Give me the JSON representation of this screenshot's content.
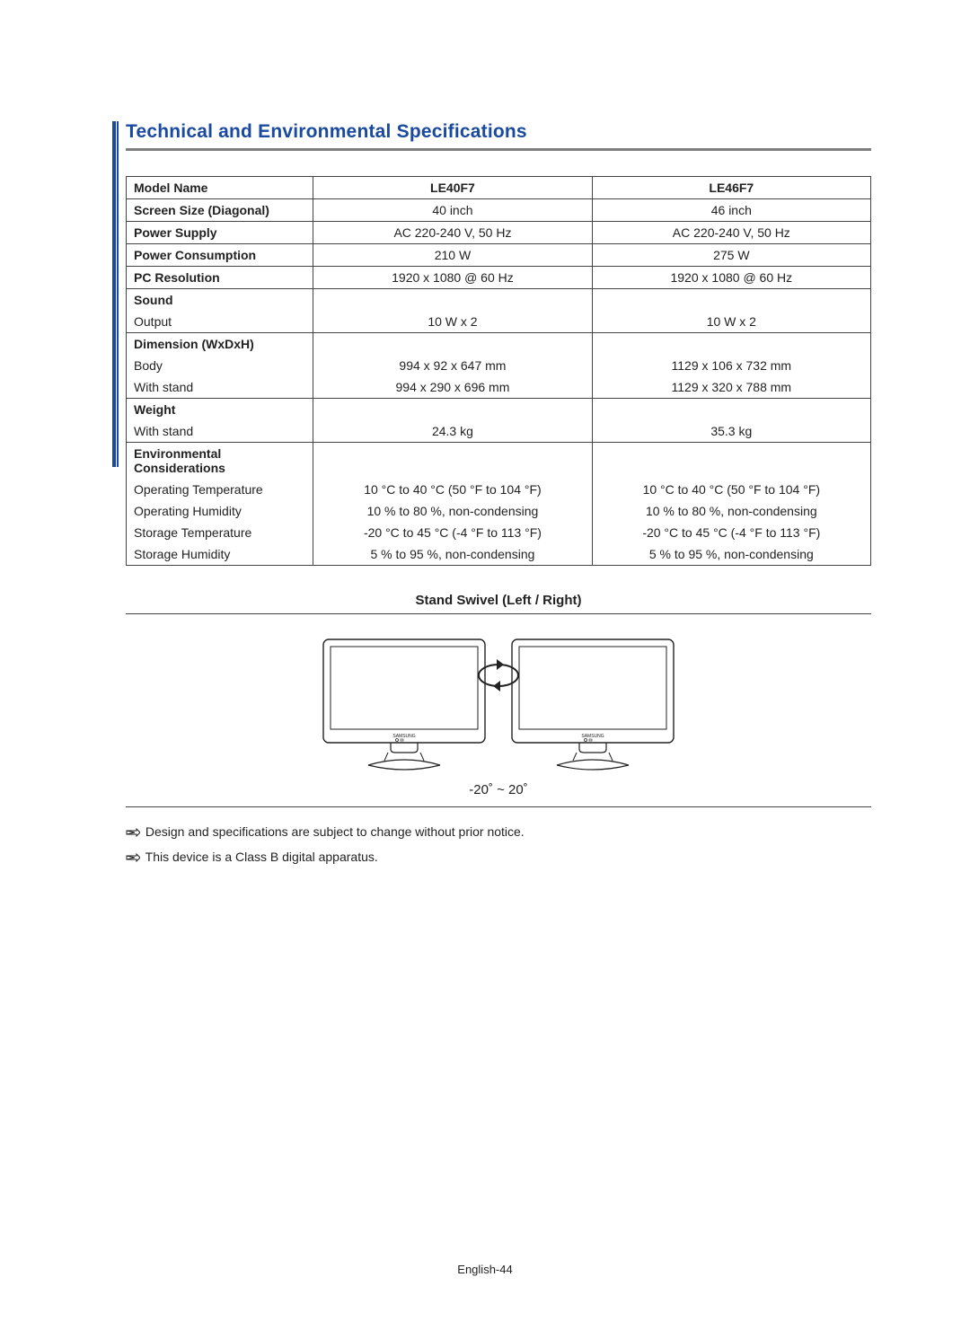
{
  "colors": {
    "accent": "#1a4aa0",
    "rule": "#7e7e7e",
    "border": "#444444",
    "text": "#222222",
    "background": "#ffffff"
  },
  "section_title": "Technical and Environmental Specifications",
  "table": {
    "header": {
      "label": "Model Name",
      "col1": "LE40F7",
      "col2": "LE46F7"
    },
    "rows": [
      {
        "label": "Screen Size (Diagonal)",
        "col1": "40 inch",
        "col2": "46 inch",
        "bold": true,
        "rule": true
      },
      {
        "label": "Power Supply",
        "col1": "AC 220-240 V, 50 Hz",
        "col2": "AC 220-240 V, 50 Hz",
        "bold": true,
        "rule": true
      },
      {
        "label": "Power Consumption",
        "col1": "210 W",
        "col2": "275 W",
        "bold": true,
        "rule": true
      },
      {
        "label": "PC Resolution",
        "col1": "1920 x 1080 @ 60 Hz",
        "col2": "1920 x 1080 @ 60 Hz",
        "bold": true,
        "rule": true
      },
      {
        "label": "Sound",
        "col1": "",
        "col2": "",
        "bold": true,
        "rule": true
      },
      {
        "label": "Output",
        "col1": "10 W x 2",
        "col2": "10 W x 2",
        "bold": false,
        "rule": false
      },
      {
        "label": "Dimension (WxDxH)",
        "col1": "",
        "col2": "",
        "bold": true,
        "rule": true
      },
      {
        "label": "Body",
        "col1": "994 x 92 x 647  mm",
        "col2": "1129 x 106 x 732 mm",
        "bold": false,
        "rule": false
      },
      {
        "label": "With stand",
        "col1": "994 x 290 x 696 mm",
        "col2": "1129 x 320 x 788 mm",
        "bold": false,
        "rule": false
      },
      {
        "label": "Weight",
        "col1": "",
        "col2": "",
        "bold": true,
        "rule": true
      },
      {
        "label": "With stand",
        "col1": "24.3 kg",
        "col2": "35.3 kg",
        "bold": false,
        "rule": false
      },
      {
        "label": "Environmental Considerations",
        "col1": "",
        "col2": "",
        "bold": true,
        "rule": true
      },
      {
        "label": "Operating Temperature",
        "col1": "10 °C to 40 °C (50 °F to 104 °F)",
        "col2": "10 °C to 40 °C (50 °F to 104 °F)",
        "bold": false,
        "rule": false
      },
      {
        "label": "Operating Humidity",
        "col1": "10 % to 80 %, non-condensing",
        "col2": "10 % to 80 %, non-condensing",
        "bold": false,
        "rule": false
      },
      {
        "label": "Storage Temperature",
        "col1": "-20 °C to 45 °C (-4 °F to 113 °F)",
        "col2": "-20 °C to 45 °C (-4 °F to 113 °F)",
        "bold": false,
        "rule": false
      },
      {
        "label": "Storage Humidity",
        "col1": "5 % to 95 %, non-condensing",
        "col2": "5 % to 95 %, non-condensing",
        "bold": false,
        "rule": false
      }
    ]
  },
  "swivel": {
    "title": "Stand Swivel (Left / Right)",
    "range": "-20˚ ~ 20˚"
  },
  "notes": [
    "Design and specifications are subject to change without prior notice.",
    "This device is a Class B digital apparatus."
  ],
  "footer": "English-44",
  "figure": {
    "tv": {
      "stroke": "#222222",
      "stroke_width": 1.4,
      "w": 180,
      "h": 120,
      "bezel": 8,
      "corner_radius": 6
    },
    "gap_between": 40,
    "brand_text": "SAMSUNG",
    "brand_fontsize": 5
  }
}
